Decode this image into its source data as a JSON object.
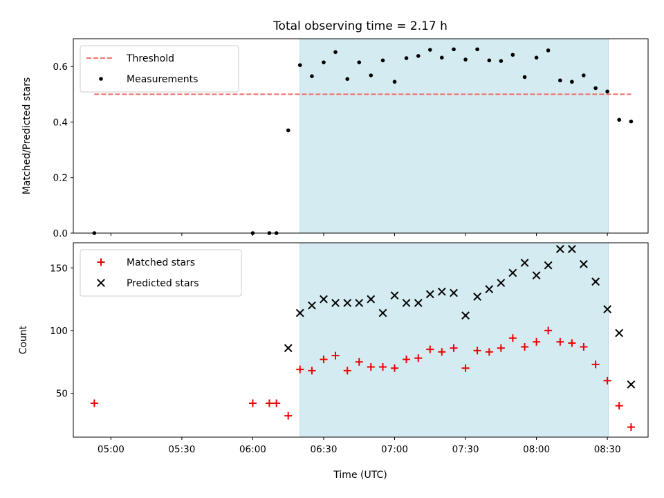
{
  "chart_data": {
    "type": "scatter",
    "title": "Total observing time = 2.17 h",
    "xlabel": "Time (UTC)",
    "x_ticks": [
      "05:00",
      "05:30",
      "06:00",
      "06:30",
      "07:00",
      "07:30",
      "08:00",
      "08:30"
    ],
    "x_tick_hours": [
      5.0,
      5.5,
      6.0,
      6.5,
      7.0,
      7.5,
      8.0,
      8.5
    ],
    "xlim_hours": [
      4.735,
      8.787
    ],
    "observing_window_hours": [
      6.333,
      8.507
    ],
    "window_color": "#d4ebf1",
    "panels": [
      {
        "ylabel": "Matched/Predicted stars",
        "ylim": [
          0,
          0.7
        ],
        "y_ticks": [
          "0.0",
          "0.2",
          "0.4",
          "0.6"
        ],
        "y_tick_values": [
          0.0,
          0.2,
          0.4,
          0.6
        ],
        "legend": {
          "placement": "upper-left",
          "entries": [
            "Threshold",
            "Measurements"
          ]
        },
        "threshold": {
          "name": "Threshold",
          "value": 0.5,
          "x_range_hours": [
            4.883,
            8.667
          ],
          "color": "#f07070",
          "style": "dashed"
        },
        "series": [
          {
            "name": "Measurements",
            "marker": "dot",
            "color": "#000000",
            "x_hours": [
              4.883,
              6.0,
              6.117,
              6.167,
              6.25,
              6.333,
              6.417,
              6.5,
              6.583,
              6.667,
              6.75,
              6.833,
              6.917,
              7.0,
              7.083,
              7.167,
              7.25,
              7.333,
              7.417,
              7.5,
              7.583,
              7.667,
              7.75,
              7.833,
              7.917,
              8.0,
              8.083,
              8.167,
              8.25,
              8.333,
              8.417,
              8.5,
              8.583,
              8.667
            ],
            "y": [
              0.0,
              0.0,
              0.0,
              0.0,
              0.37,
              0.605,
              0.565,
              0.615,
              0.652,
              0.555,
              0.615,
              0.568,
              0.622,
              0.545,
              0.63,
              0.638,
              0.66,
              0.632,
              0.662,
              0.625,
              0.662,
              0.622,
              0.62,
              0.642,
              0.562,
              0.632,
              0.658,
              0.55,
              0.545,
              0.568,
              0.522,
              0.51,
              0.408,
              0.402
            ]
          }
        ]
      },
      {
        "ylabel": "Count",
        "ylim": [
          15,
          170
        ],
        "y_ticks": [
          "50",
          "100",
          "150"
        ],
        "y_tick_values": [
          50,
          100,
          150
        ],
        "legend": {
          "placement": "upper-left",
          "entries": [
            "Matched stars",
            "Predicted stars"
          ]
        },
        "series": [
          {
            "name": "Matched stars",
            "marker": "plus",
            "color": "#ee0000",
            "x_hours": [
              4.883,
              6.0,
              6.117,
              6.167,
              6.25,
              6.333,
              6.417,
              6.5,
              6.583,
              6.667,
              6.75,
              6.833,
              6.917,
              7.0,
              7.083,
              7.167,
              7.25,
              7.333,
              7.417,
              7.5,
              7.583,
              7.667,
              7.75,
              7.833,
              7.917,
              8.0,
              8.083,
              8.167,
              8.25,
              8.333,
              8.417,
              8.5,
              8.583,
              8.667
            ],
            "y": [
              42,
              42,
              42,
              42,
              32,
              69,
              68,
              77,
              80,
              68,
              75,
              71,
              71,
              70,
              77,
              78,
              85,
              83,
              86,
              70,
              84,
              83,
              86,
              94,
              87,
              91,
              100,
              91,
              90,
              87,
              73,
              60,
              40,
              23
            ]
          },
          {
            "name": "Predicted stars",
            "marker": "x",
            "color": "#000000",
            "x_hours": [
              6.25,
              6.333,
              6.417,
              6.5,
              6.583,
              6.667,
              6.75,
              6.833,
              6.917,
              7.0,
              7.083,
              7.167,
              7.25,
              7.333,
              7.417,
              7.5,
              7.583,
              7.667,
              7.75,
              7.833,
              7.917,
              8.0,
              8.083,
              8.167,
              8.25,
              8.333,
              8.417,
              8.5,
              8.583,
              8.667
            ],
            "y": [
              86,
              114,
              120,
              125,
              122,
              122,
              122,
              125,
              114,
              128,
              122,
              122,
              129,
              131,
              130,
              112,
              127,
              133,
              138,
              146,
              154,
              144,
              152,
              165,
              165,
              153,
              139,
              117,
              98,
              57
            ]
          }
        ]
      }
    ]
  }
}
